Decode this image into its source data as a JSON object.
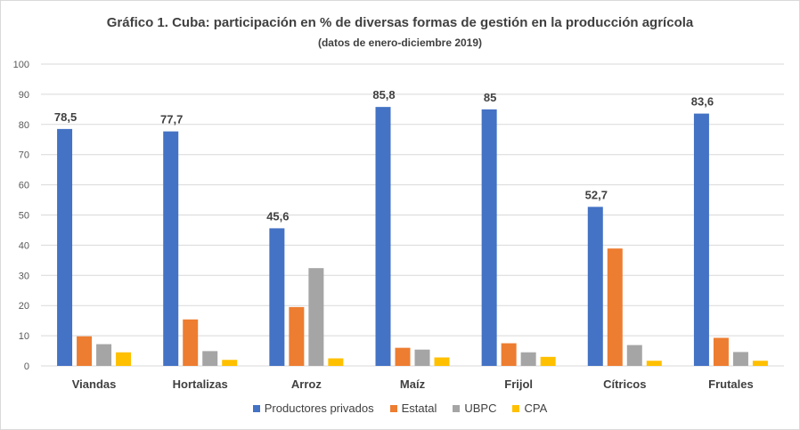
{
  "chart_data": {
    "type": "bar",
    "title": "Gráfico 1. Cuba: participación en % de diversas formas de gestión en la producción agrícola",
    "subtitle": "(datos de enero-diciembre 2019)",
    "categories": [
      "Viandas",
      "Hortalizas",
      "Arroz",
      "Maíz",
      "Frijol",
      "Cítricos",
      "Frutales"
    ],
    "series": [
      {
        "name": "Productores privados",
        "color": "#4472c4",
        "values": [
          78.5,
          77.7,
          45.6,
          85.8,
          85,
          52.7,
          83.6
        ],
        "labels": [
          "78,5",
          "77,7",
          "45,6",
          "85,8",
          "85",
          "52,7",
          "83,6"
        ]
      },
      {
        "name": "Estatal",
        "color": "#ed7d31",
        "values": [
          9.8,
          15.4,
          19.5,
          6.0,
          7.5,
          38.9,
          9.3
        ]
      },
      {
        "name": "UBPC",
        "color": "#a5a5a5",
        "values": [
          7.2,
          4.9,
          32.4,
          5.4,
          4.5,
          6.9,
          4.6
        ]
      },
      {
        "name": "CPA",
        "color": "#ffc000",
        "values": [
          4.5,
          2.0,
          2.5,
          2.8,
          3.0,
          1.7,
          1.7
        ]
      }
    ],
    "ylim": [
      0,
      100
    ],
    "yticks": [
      "0",
      "10",
      "20",
      "30",
      "40",
      "50",
      "60",
      "70",
      "80",
      "90",
      "100"
    ],
    "grid": true,
    "legend_position": "bottom"
  }
}
